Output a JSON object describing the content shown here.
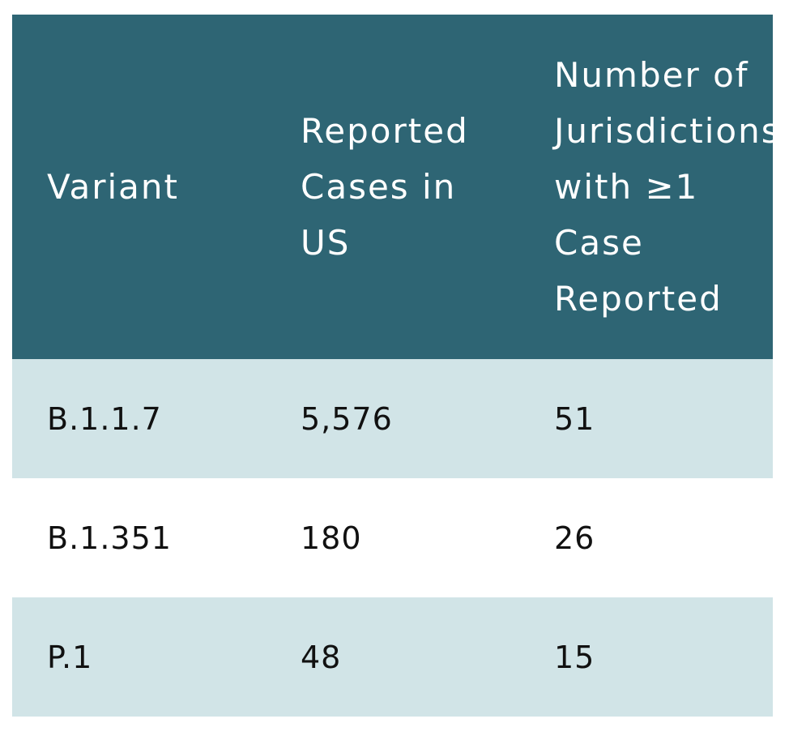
{
  "table": {
    "headers": {
      "variant": "Variant",
      "reported_cases": "Reported Cases in US",
      "jurisdictions": "Number of Jurisdictions with ≥1 Case Reported"
    },
    "rows": [
      {
        "variant": "B.1.1.7",
        "reported_cases": "5,576",
        "jurisdictions": "51"
      },
      {
        "variant": "B.1.351",
        "reported_cases": "180",
        "jurisdictions": "26"
      },
      {
        "variant": "P.1",
        "reported_cases": "48",
        "jurisdictions": "15"
      }
    ],
    "colors": {
      "header_background": "#2e6574",
      "header_text": "#ffffff",
      "shaded_row_background": "#d1e4e7",
      "plain_row_background": "#ffffff",
      "cell_text": "#111111"
    }
  }
}
